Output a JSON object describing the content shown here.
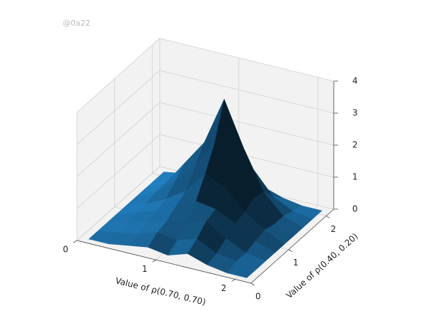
{
  "watermark": "@0a22",
  "chart_data": {
    "type": "surface3d",
    "xlabel": "Value of ρ(0.70, 0.70)",
    "ylabel": "Value of ρ(0.40, 0.20)",
    "color": "#1f77b4",
    "x": [
      0.1,
      0.35,
      0.6,
      0.85,
      1.1,
      1.35,
      1.6,
      1.85,
      2.1
    ],
    "y": [
      0.1,
      0.35,
      0.6,
      0.85,
      1.1,
      1.35,
      1.6,
      1.85,
      2.1
    ],
    "z": [
      [
        0,
        0,
        0.1,
        0.2,
        0.1,
        0.3,
        0.1,
        0,
        0
      ],
      [
        0,
        0.1,
        0.2,
        0.4,
        0.3,
        0.5,
        0.2,
        0.1,
        0
      ],
      [
        0,
        0.1,
        0.3,
        0.5,
        0.6,
        0.8,
        0.4,
        0.1,
        0
      ],
      [
        0,
        0.2,
        0.4,
        0.7,
        1.0,
        0.9,
        0.6,
        0.2,
        0
      ],
      [
        0,
        0.2,
        0.5,
        0.9,
        1.6,
        1.3,
        0.7,
        0.3,
        0
      ],
      [
        0,
        0.3,
        0.8,
        1.4,
        2.3,
        1.8,
        0.9,
        0.2,
        0
      ],
      [
        0,
        0.3,
        1.1,
        1.9,
        3.4,
        2.0,
        0.8,
        0.2,
        0
      ],
      [
        0,
        0.2,
        0.7,
        1.3,
        1.8,
        1.1,
        0.4,
        0.1,
        0
      ],
      [
        0,
        0.1,
        0.3,
        0.4,
        0.5,
        0.3,
        0.1,
        0,
        0
      ]
    ],
    "xlim": [
      0,
      2.2
    ],
    "ylim": [
      0,
      2.2
    ],
    "zlim": [
      0,
      4
    ],
    "xticks": [
      0,
      1,
      2
    ],
    "yticks": [
      0,
      1,
      2
    ],
    "zticks": [
      0,
      1,
      2,
      3,
      4
    ],
    "grid": true
  }
}
